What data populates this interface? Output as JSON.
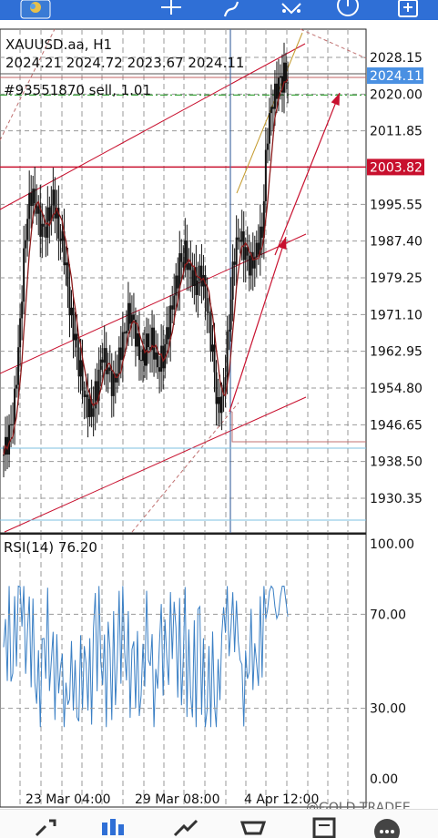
{
  "toolbar": {
    "icons": [
      "app-logo-icon",
      "crosshair-icon",
      "indicators-icon",
      "objects-icon",
      "timeframe-clock-icon",
      "new-order-icon"
    ]
  },
  "chart": {
    "symbol_line": "XAUUSD.aa, H1",
    "ohlc_line": "2024.21 2024.72 2023.67 2024.11",
    "position_label": "#93551870 sell, 1.01",
    "price_labels": [
      "2028.15",
      "2020.00",
      "2011.85",
      "2003.82",
      "1995.55",
      "1987.40",
      "1979.25",
      "1971.10",
      "1962.95",
      "1954.80",
      "1946.65",
      "1938.50",
      "1930.35"
    ],
    "current_price_tag": "2024.11",
    "level_tag": "2003.82",
    "date_labels": [
      "23 Mar 04:00",
      "29 Mar 08:00",
      "4 Apr 12:00"
    ],
    "watermark": "@GOLD TRADEE",
    "colors": {
      "bull_bear": "#111111",
      "trendline": "#c8102e",
      "ma": "#8b1a1a",
      "price_tag": "#4a90e2",
      "level_tag": "#c8102e",
      "rsi_line": "#3a7fc4"
    }
  },
  "rsi": {
    "label": "RSI(14) 76.20",
    "levels": [
      "100.00",
      "70.00",
      "30.00",
      "0.00"
    ]
  },
  "bottom_nav": {
    "items": [
      "quotes-icon",
      "chart-icon",
      "trade-icon",
      "history-icon",
      "news-icon",
      "more-icon"
    ]
  }
}
